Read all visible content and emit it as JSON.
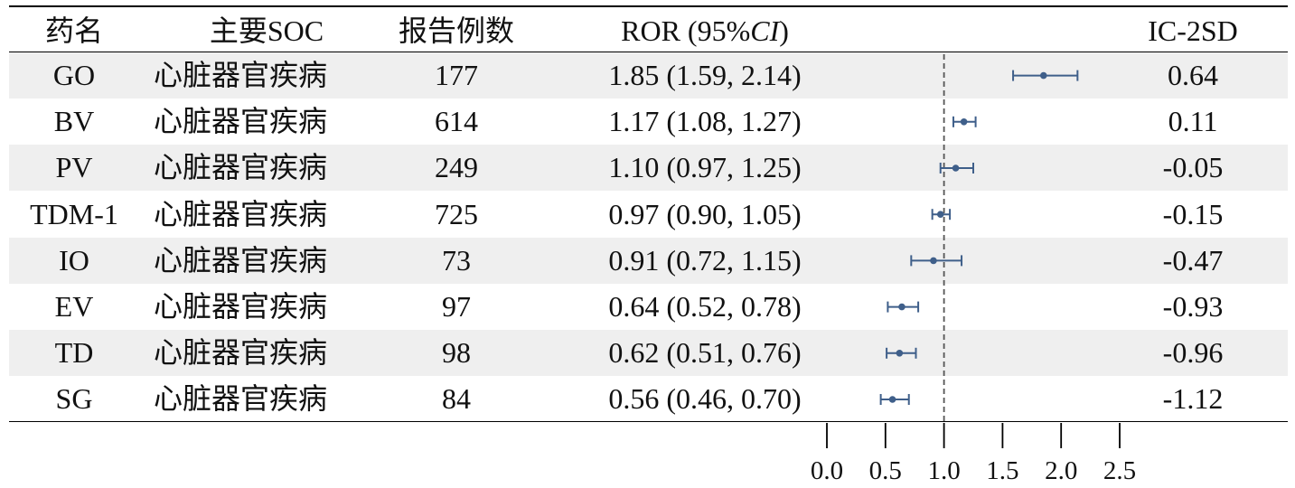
{
  "headers": {
    "drug": "药名",
    "soc": "主要SOC",
    "reports": "报告例数",
    "ror_prefix": "ROR (95%",
    "ror_ci": "CI",
    "ror_suffix": ")",
    "ic": "IC-2SD"
  },
  "chart_data": {
    "type": "forest",
    "reference_line": 1.0,
    "xlim": [
      0.0,
      2.5
    ],
    "x_ticks": [
      "0.0",
      "0.5",
      "1.0",
      "1.5",
      "2.0",
      "2.5"
    ],
    "x_tick_values": [
      0.0,
      0.5,
      1.0,
      1.5,
      2.0,
      2.5
    ],
    "colors": {
      "marker": "#3f5f8a",
      "reference": "#555555",
      "shade": "#efefef"
    },
    "rows": [
      {
        "drug": "GO",
        "soc": "心脏器官疾病",
        "reports": "177",
        "ror_text": "1.85 (1.59, 2.14)",
        "ror": 1.85,
        "lo": 1.59,
        "hi": 2.14,
        "ic": "0.64"
      },
      {
        "drug": "BV",
        "soc": "心脏器官疾病",
        "reports": "614",
        "ror_text": "1.17 (1.08, 1.27)",
        "ror": 1.17,
        "lo": 1.08,
        "hi": 1.27,
        "ic": "0.11"
      },
      {
        "drug": "PV",
        "soc": "心脏器官疾病",
        "reports": "249",
        "ror_text": "1.10 (0.97, 1.25)",
        "ror": 1.1,
        "lo": 0.97,
        "hi": 1.25,
        "ic": "-0.05"
      },
      {
        "drug": "TDM-1",
        "soc": "心脏器官疾病",
        "reports": "725",
        "ror_text": "0.97 (0.90, 1.05)",
        "ror": 0.97,
        "lo": 0.9,
        "hi": 1.05,
        "ic": "-0.15"
      },
      {
        "drug": "IO",
        "soc": "心脏器官疾病",
        "reports": "73",
        "ror_text": "0.91 (0.72, 1.15)",
        "ror": 0.91,
        "lo": 0.72,
        "hi": 1.15,
        "ic": "-0.47"
      },
      {
        "drug": "EV",
        "soc": "心脏器官疾病",
        "reports": "97",
        "ror_text": "0.64 (0.52, 0.78)",
        "ror": 0.64,
        "lo": 0.52,
        "hi": 0.78,
        "ic": "-0.93"
      },
      {
        "drug": "TD",
        "soc": "心脏器官疾病",
        "reports": "98",
        "ror_text": "0.62 (0.51, 0.76)",
        "ror": 0.62,
        "lo": 0.51,
        "hi": 0.76,
        "ic": "-0.96"
      },
      {
        "drug": "SG",
        "soc": "心脏器官疾病",
        "reports": "84",
        "ror_text": "0.56 (0.46, 0.70)",
        "ror": 0.56,
        "lo": 0.46,
        "hi": 0.7,
        "ic": "-1.12"
      }
    ]
  }
}
